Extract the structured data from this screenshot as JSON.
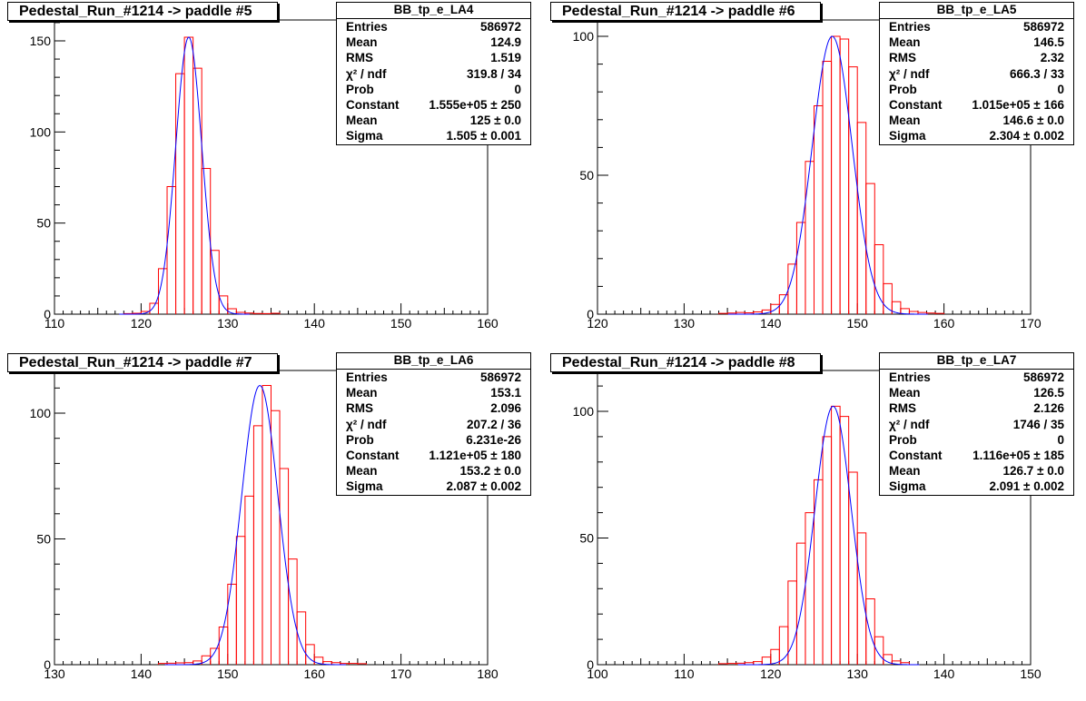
{
  "colors": {
    "fit": "#0000ff",
    "bars": "#ff0000",
    "axis": "#000000"
  },
  "chart_data": [
    {
      "type": "bar",
      "title": "Pedestal_Run_#1214 -> paddle #5",
      "xlim": [
        110,
        160
      ],
      "xticks": [
        110,
        120,
        130,
        140,
        150,
        160
      ],
      "ylim": [
        0,
        160
      ],
      "yticks": [
        0,
        50,
        100,
        150
      ],
      "x": [
        118,
        119,
        120,
        121,
        122,
        123,
        124,
        125,
        126,
        127,
        128,
        129,
        130,
        131,
        132,
        133,
        134,
        135
      ],
      "values": [
        0.3,
        0.5,
        1.5,
        6,
        25,
        70,
        132,
        152,
        135,
        80,
        35,
        10,
        3,
        1,
        0.6,
        0.4,
        0.3,
        0.5
      ],
      "fit_model": "gaus",
      "stats": {
        "name": "BB_tp_e_LA4",
        "rows": [
          {
            "label": "Entries",
            "value": "586972"
          },
          {
            "label": "Mean",
            "value": "124.9"
          },
          {
            "label": "RMS",
            "value": "1.519"
          },
          {
            "label": "χ² / ndf",
            "value": "319.8 / 34"
          },
          {
            "label": "Prob",
            "value": "0"
          },
          {
            "label": "Constant",
            "value": "1.555e+05 ± 250"
          },
          {
            "label": "Mean",
            "value": "125 ± 0.0"
          },
          {
            "label": "Sigma",
            "value": "1.505 ± 0.001"
          }
        ]
      }
    },
    {
      "type": "bar",
      "title": "Pedestal_Run_#1214 -> paddle #6",
      "xlim": [
        120,
        170
      ],
      "xticks": [
        120,
        130,
        140,
        150,
        160,
        170
      ],
      "ylim": [
        0,
        104
      ],
      "yticks": [
        0,
        50,
        100
      ],
      "x": [
        134,
        135,
        136,
        137,
        138,
        139,
        140,
        141,
        142,
        143,
        144,
        145,
        146,
        147,
        148,
        149,
        150,
        151,
        152,
        153,
        154,
        155,
        156,
        157,
        158,
        159
      ],
      "values": [
        0.3,
        0.4,
        0.6,
        0.5,
        0.8,
        1.5,
        3.5,
        7,
        18,
        33,
        55,
        75,
        91,
        100,
        99,
        89,
        69,
        47,
        25,
        11,
        4.5,
        2,
        1,
        0.6,
        0.4,
        0.3
      ],
      "fit_model": "gaus",
      "stats": {
        "name": "BB_tp_e_LA5",
        "rows": [
          {
            "label": "Entries",
            "value": "586972"
          },
          {
            "label": "Mean",
            "value": "146.5"
          },
          {
            "label": "RMS",
            "value": "2.32"
          },
          {
            "label": "χ² / ndf",
            "value": "666.3 / 33"
          },
          {
            "label": "Prob",
            "value": "0"
          },
          {
            "label": "Constant",
            "value": "1.015e+05 ± 166"
          },
          {
            "label": "Mean",
            "value": "146.6 ± 0.0"
          },
          {
            "label": "Sigma",
            "value": "2.304 ± 0.002"
          }
        ]
      }
    },
    {
      "type": "bar",
      "title": "Pedestal_Run_#1214 -> paddle #7",
      "xlim": [
        130,
        180
      ],
      "xticks": [
        130,
        140,
        150,
        160,
        170,
        180
      ],
      "ylim": [
        0,
        115
      ],
      "yticks": [
        0,
        50,
        100
      ],
      "x": [
        142,
        143,
        144,
        145,
        146,
        147,
        148,
        149,
        150,
        151,
        152,
        153,
        154,
        155,
        156,
        157,
        158,
        159,
        160,
        161,
        162,
        163,
        164,
        165
      ],
      "values": [
        0.5,
        0.6,
        0.7,
        0.8,
        1.5,
        3.5,
        6.5,
        15,
        32,
        51,
        67,
        95,
        111,
        101,
        78,
        42,
        21,
        8,
        3,
        1.2,
        0.8,
        0.5,
        0.5,
        0.4
      ],
      "fit_model": "gaus",
      "stats": {
        "name": "BB_tp_e_LA6",
        "rows": [
          {
            "label": "Entries",
            "value": "586972"
          },
          {
            "label": "Mean",
            "value": "153.1"
          },
          {
            "label": "RMS",
            "value": "2.096"
          },
          {
            "label": "χ² / ndf",
            "value": "207.2 / 36"
          },
          {
            "label": "Prob",
            "value": "6.231e-26"
          },
          {
            "label": "Constant",
            "value": "1.121e+05 ± 180"
          },
          {
            "label": "Mean",
            "value": "153.2 ± 0.0"
          },
          {
            "label": "Sigma",
            "value": "2.087 ± 0.002"
          }
        ]
      }
    },
    {
      "type": "bar",
      "title": "Pedestal_Run_#1214 -> paddle #8",
      "xlim": [
        100,
        150
      ],
      "xticks": [
        100,
        110,
        120,
        130,
        140,
        150
      ],
      "ylim": [
        0,
        115
      ],
      "yticks": [
        0,
        50,
        100
      ],
      "x": [
        114,
        115,
        116,
        117,
        118,
        119,
        120,
        121,
        122,
        123,
        124,
        125,
        126,
        127,
        128,
        129,
        130,
        131,
        132,
        133,
        134,
        135
      ],
      "values": [
        0.4,
        0.5,
        0.6,
        0.8,
        1.2,
        3,
        6,
        15,
        33,
        48,
        60,
        73,
        90,
        102,
        98,
        76,
        52,
        26,
        11,
        4,
        1.5,
        0.8
      ],
      "fit_model": "gaus",
      "stats": {
        "name": "BB_tp_e_LA7",
        "rows": [
          {
            "label": "Entries",
            "value": "586972"
          },
          {
            "label": "Mean",
            "value": "126.5"
          },
          {
            "label": "RMS",
            "value": "2.126"
          },
          {
            "label": "χ² / ndf",
            "value": "1746 / 35"
          },
          {
            "label": "Prob",
            "value": "0"
          },
          {
            "label": "Constant",
            "value": "1.116e+05 ± 185"
          },
          {
            "label": "Mean",
            "value": "126.7 ± 0.0"
          },
          {
            "label": "Sigma",
            "value": "2.091 ± 0.002"
          }
        ]
      }
    }
  ]
}
